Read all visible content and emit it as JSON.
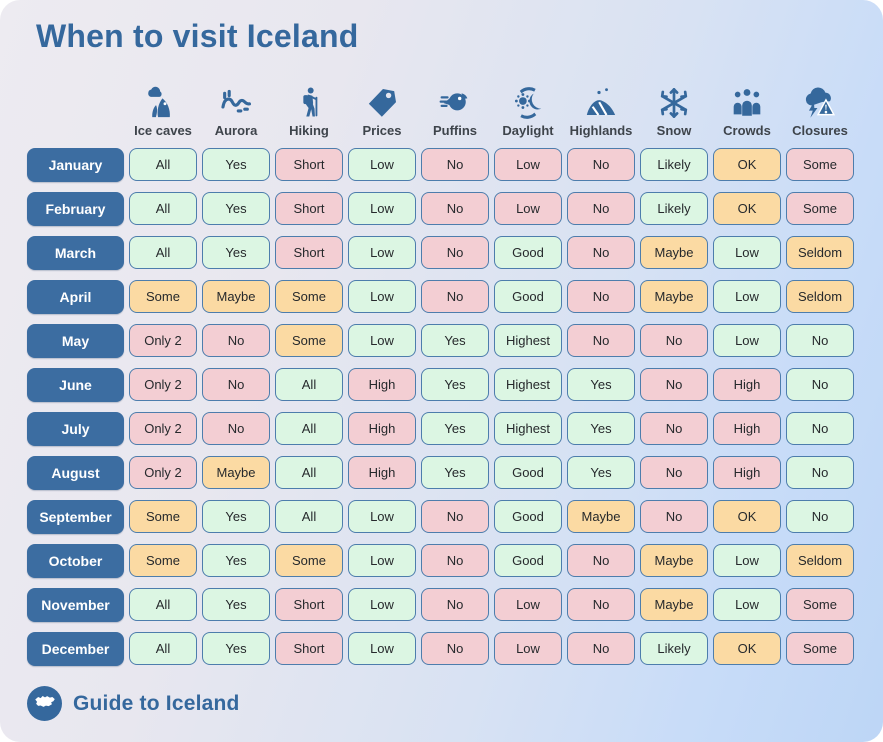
{
  "title": "When to visit Iceland",
  "footer": {
    "brand": "Guide to Iceland",
    "logo_icon": "iceland-map-icon"
  },
  "palette": {
    "accent": "#35689d",
    "month_bg": "#3c6da1",
    "cell_border": "#4d7dac",
    "good": "#dcf6e3",
    "mid": "#fbdaa3",
    "bad": "#f3ced3",
    "icon_color": "#35689c"
  },
  "chart_data": {
    "type": "table",
    "title": "When to visit Iceland",
    "columns": [
      "Ice caves",
      "Aurora",
      "Hiking",
      "Prices",
      "Puffins",
      "Daylight",
      "Highlands",
      "Snow",
      "Crowds",
      "Closures"
    ],
    "column_icons": [
      "ice-caves-icon",
      "aurora-icon",
      "hiking-icon",
      "price-tag-icon",
      "puffin-icon",
      "daylight-icon",
      "highlands-icon",
      "snowflake-icon",
      "crowds-icon",
      "closures-icon"
    ],
    "rating_legend": {
      "good": "green",
      "mid": "orange",
      "bad": "pink"
    },
    "rows": [
      {
        "month": "January",
        "values": [
          "All",
          "Yes",
          "Short",
          "Low",
          "No",
          "Low",
          "No",
          "Likely",
          "OK",
          "Some"
        ],
        "ratings": [
          "good",
          "good",
          "bad",
          "good",
          "bad",
          "bad",
          "bad",
          "good",
          "mid",
          "bad"
        ]
      },
      {
        "month": "February",
        "values": [
          "All",
          "Yes",
          "Short",
          "Low",
          "No",
          "Low",
          "No",
          "Likely",
          "OK",
          "Some"
        ],
        "ratings": [
          "good",
          "good",
          "bad",
          "good",
          "bad",
          "bad",
          "bad",
          "good",
          "mid",
          "bad"
        ]
      },
      {
        "month": "March",
        "values": [
          "All",
          "Yes",
          "Short",
          "Low",
          "No",
          "Good",
          "No",
          "Maybe",
          "Low",
          "Seldom"
        ],
        "ratings": [
          "good",
          "good",
          "bad",
          "good",
          "bad",
          "good",
          "bad",
          "mid",
          "good",
          "mid"
        ]
      },
      {
        "month": "April",
        "values": [
          "Some",
          "Maybe",
          "Some",
          "Low",
          "No",
          "Good",
          "No",
          "Maybe",
          "Low",
          "Seldom"
        ],
        "ratings": [
          "mid",
          "mid",
          "mid",
          "good",
          "bad",
          "good",
          "bad",
          "mid",
          "good",
          "mid"
        ]
      },
      {
        "month": "May",
        "values": [
          "Only 2",
          "No",
          "Some",
          "Low",
          "Yes",
          "Highest",
          "No",
          "No",
          "Low",
          "No"
        ],
        "ratings": [
          "bad",
          "bad",
          "mid",
          "good",
          "good",
          "good",
          "bad",
          "bad",
          "good",
          "good"
        ]
      },
      {
        "month": "June",
        "values": [
          "Only 2",
          "No",
          "All",
          "High",
          "Yes",
          "Highest",
          "Yes",
          "No",
          "High",
          "No"
        ],
        "ratings": [
          "bad",
          "bad",
          "good",
          "bad",
          "good",
          "good",
          "good",
          "bad",
          "bad",
          "good"
        ]
      },
      {
        "month": "July",
        "values": [
          "Only 2",
          "No",
          "All",
          "High",
          "Yes",
          "Highest",
          "Yes",
          "No",
          "High",
          "No"
        ],
        "ratings": [
          "bad",
          "bad",
          "good",
          "bad",
          "good",
          "good",
          "good",
          "bad",
          "bad",
          "good"
        ]
      },
      {
        "month": "August",
        "values": [
          "Only 2",
          "Maybe",
          "All",
          "High",
          "Yes",
          "Good",
          "Yes",
          "No",
          "High",
          "No"
        ],
        "ratings": [
          "bad",
          "mid",
          "good",
          "bad",
          "good",
          "good",
          "good",
          "bad",
          "bad",
          "good"
        ]
      },
      {
        "month": "September",
        "values": [
          "Some",
          "Yes",
          "All",
          "Low",
          "No",
          "Good",
          "Maybe",
          "No",
          "OK",
          "No"
        ],
        "ratings": [
          "mid",
          "good",
          "good",
          "good",
          "bad",
          "good",
          "mid",
          "bad",
          "mid",
          "good"
        ]
      },
      {
        "month": "October",
        "values": [
          "Some",
          "Yes",
          "Some",
          "Low",
          "No",
          "Good",
          "No",
          "Maybe",
          "Low",
          "Seldom"
        ],
        "ratings": [
          "mid",
          "good",
          "mid",
          "good",
          "bad",
          "good",
          "bad",
          "mid",
          "good",
          "mid"
        ]
      },
      {
        "month": "November",
        "values": [
          "All",
          "Yes",
          "Short",
          "Low",
          "No",
          "Low",
          "No",
          "Maybe",
          "Low",
          "Some"
        ],
        "ratings": [
          "good",
          "good",
          "bad",
          "good",
          "bad",
          "bad",
          "bad",
          "mid",
          "good",
          "bad"
        ]
      },
      {
        "month": "December",
        "values": [
          "All",
          "Yes",
          "Short",
          "Low",
          "No",
          "Low",
          "No",
          "Likely",
          "OK",
          "Some"
        ],
        "ratings": [
          "good",
          "good",
          "bad",
          "good",
          "bad",
          "bad",
          "bad",
          "good",
          "mid",
          "bad"
        ]
      }
    ]
  }
}
